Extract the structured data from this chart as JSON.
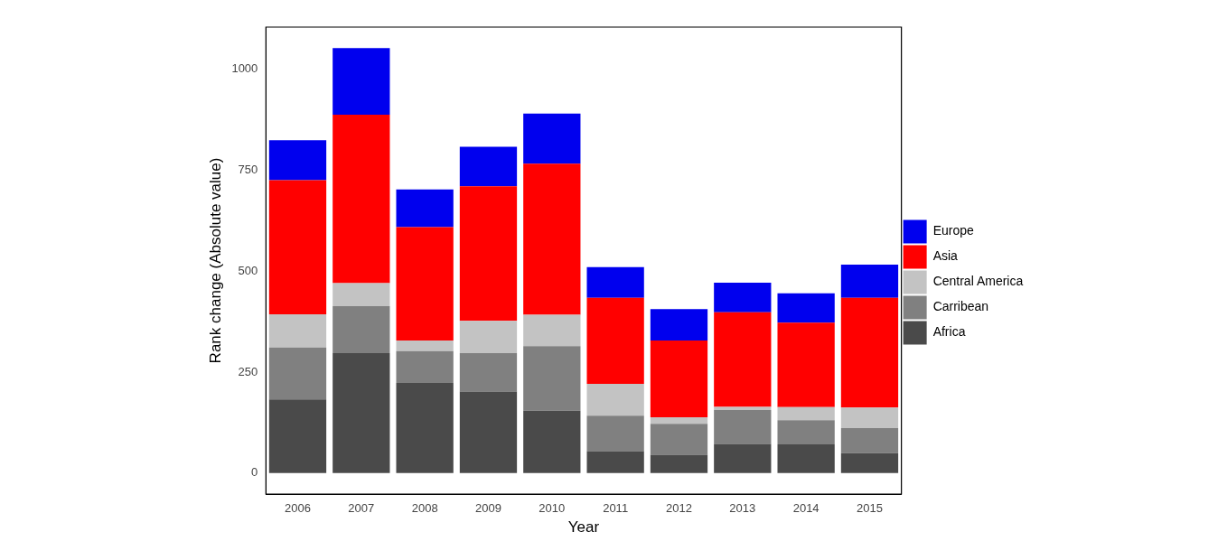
{
  "chart_data": {
    "type": "bar",
    "stacked": true,
    "xlabel": "Year",
    "ylabel": "Rank change (Absolute value)",
    "categories": [
      "2006",
      "2007",
      "2008",
      "2009",
      "2010",
      "2011",
      "2012",
      "2013",
      "2014",
      "2015"
    ],
    "series": [
      {
        "name": "Africa",
        "color": "#4a4a4a",
        "values": [
          182,
          297,
          223,
          202,
          154,
          54,
          45,
          72,
          71,
          49
        ]
      },
      {
        "name": "Carribean",
        "color": "#808080",
        "values": [
          129,
          116,
          79,
          95,
          160,
          88,
          77,
          84,
          60,
          62
        ]
      },
      {
        "name": "Central America",
        "color": "#c3c3c3",
        "values": [
          82,
          57,
          26,
          80,
          78,
          79,
          16,
          8,
          32,
          51
        ]
      },
      {
        "name": "Asia",
        "color": "#ff0000",
        "values": [
          332,
          417,
          281,
          333,
          374,
          213,
          190,
          234,
          209,
          272
        ]
      },
      {
        "name": "Europe",
        "color": "#0000ee",
        "values": [
          99,
          165,
          93,
          98,
          124,
          76,
          78,
          73,
          73,
          82
        ]
      }
    ],
    "ylim": [
      -52,
      1104
    ],
    "yticks": [
      0,
      250,
      500,
      750,
      1000
    ],
    "grid": false,
    "legend": "right"
  }
}
